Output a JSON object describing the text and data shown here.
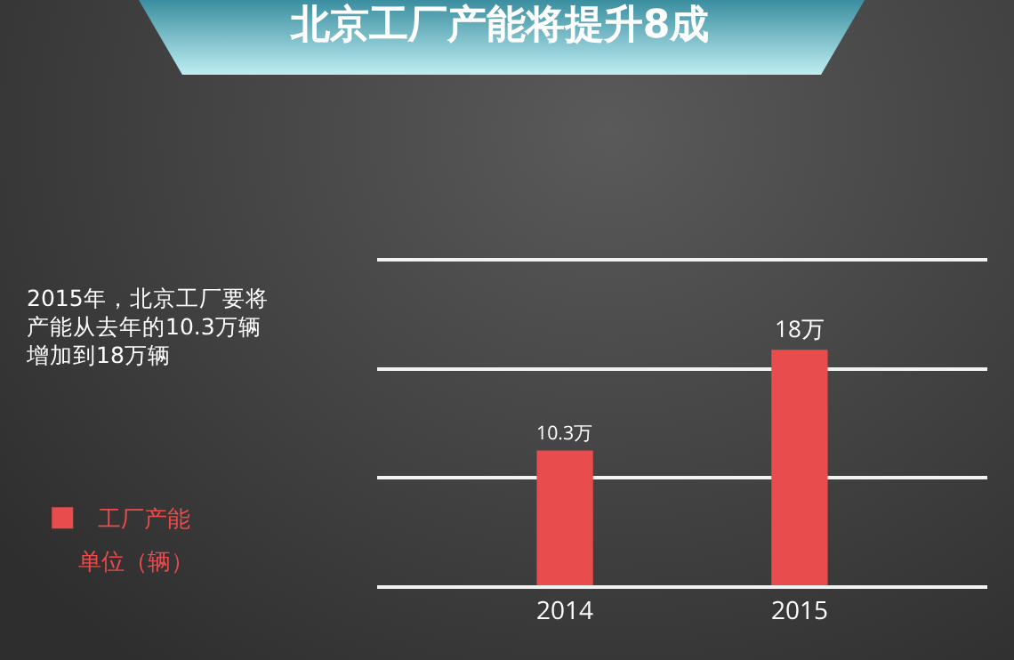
{
  "chart_data": {
    "type": "bar",
    "title": "北京工厂产能将提升8成",
    "categories": [
      "2014",
      "2015"
    ],
    "series": [
      {
        "name": "工厂产能",
        "color": "#e84c4c",
        "values": [
          10.3,
          18
        ],
        "value_labels": [
          "10.3万",
          "18万"
        ]
      }
    ],
    "ylim": [
      0,
      24.75
    ],
    "yticks": [
      {
        "value": 0,
        "label": null
      },
      {
        "value": 8.25,
        "label": null
      },
      {
        "value": 16.5,
        "label": null
      },
      {
        "value": 24.75,
        "label": null
      }
    ],
    "grid": "y",
    "legend": "left",
    "tick_labels": "x",
    "annotations": [
      "2015年，北京工厂要将产能从去年的10.3万辆增加到18万辆",
      "单位（辆）"
    ]
  }
}
